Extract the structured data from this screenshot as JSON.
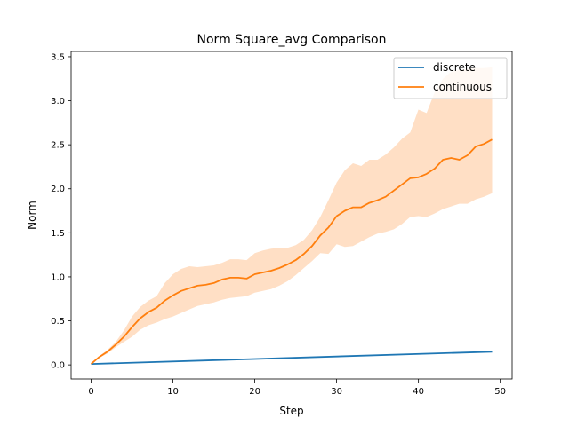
{
  "chart_data": {
    "type": "line",
    "title": "Norm Square_avg Comparison",
    "xlabel": "Step",
    "ylabel": "Norm",
    "xlim": [
      -2.45,
      51.45
    ],
    "ylim": [
      -0.16,
      3.56
    ],
    "xticks": [
      0,
      10,
      20,
      30,
      40,
      50
    ],
    "yticks": [
      0.0,
      0.5,
      1.0,
      1.5,
      2.0,
      2.5,
      3.0,
      3.5
    ],
    "xtick_labels": [
      "0",
      "10",
      "20",
      "30",
      "40",
      "50"
    ],
    "ytick_labels": [
      "0.0",
      "0.5",
      "1.0",
      "1.5",
      "2.0",
      "2.5",
      "3.0",
      "3.5"
    ],
    "grid": false,
    "legend_position": "top-right",
    "series": [
      {
        "name": "discrete",
        "color": "#1f77b4",
        "x": [
          0,
          49
        ],
        "y": [
          0.01,
          0.15
        ]
      },
      {
        "name": "continuous",
        "color": "#ff7f0e",
        "band_color": "#ffdfc5",
        "x": [
          0,
          1,
          2,
          3,
          4,
          5,
          6,
          7,
          8,
          9,
          10,
          11,
          12,
          13,
          14,
          15,
          16,
          17,
          18,
          19,
          20,
          21,
          22,
          23,
          24,
          25,
          26,
          27,
          28,
          29,
          30,
          31,
          32,
          33,
          34,
          35,
          36,
          37,
          38,
          39,
          40,
          41,
          42,
          43,
          44,
          45,
          46,
          47,
          48,
          49
        ],
        "y": [
          0.01,
          0.09,
          0.15,
          0.23,
          0.32,
          0.43,
          0.53,
          0.6,
          0.65,
          0.73,
          0.79,
          0.84,
          0.87,
          0.9,
          0.91,
          0.93,
          0.97,
          0.99,
          0.99,
          0.98,
          1.03,
          1.05,
          1.07,
          1.1,
          1.14,
          1.19,
          1.26,
          1.35,
          1.47,
          1.56,
          1.69,
          1.75,
          1.79,
          1.79,
          1.84,
          1.87,
          1.91,
          1.98,
          2.05,
          2.12,
          2.13,
          2.17,
          2.23,
          2.33,
          2.35,
          2.33,
          2.38,
          2.48,
          2.51,
          2.56
        ],
        "lower": [
          0.01,
          0.08,
          0.13,
          0.2,
          0.26,
          0.32,
          0.4,
          0.45,
          0.48,
          0.52,
          0.55,
          0.59,
          0.63,
          0.67,
          0.69,
          0.71,
          0.74,
          0.76,
          0.77,
          0.78,
          0.82,
          0.84,
          0.86,
          0.9,
          0.95,
          1.02,
          1.1,
          1.18,
          1.27,
          1.26,
          1.37,
          1.34,
          1.35,
          1.4,
          1.45,
          1.49,
          1.51,
          1.54,
          1.6,
          1.68,
          1.69,
          1.68,
          1.72,
          1.77,
          1.8,
          1.83,
          1.83,
          1.88,
          1.91,
          1.95
        ],
        "upper": [
          0.01,
          0.1,
          0.17,
          0.26,
          0.39,
          0.55,
          0.66,
          0.73,
          0.78,
          0.93,
          1.03,
          1.09,
          1.12,
          1.11,
          1.12,
          1.13,
          1.16,
          1.2,
          1.2,
          1.19,
          1.27,
          1.3,
          1.32,
          1.33,
          1.33,
          1.36,
          1.42,
          1.53,
          1.68,
          1.87,
          2.07,
          2.21,
          2.29,
          2.26,
          2.33,
          2.33,
          2.39,
          2.47,
          2.57,
          2.64,
          2.9,
          2.86,
          3.1,
          3.25,
          3.33,
          3.35,
          3.36,
          3.37,
          3.37,
          3.38
        ]
      }
    ]
  }
}
